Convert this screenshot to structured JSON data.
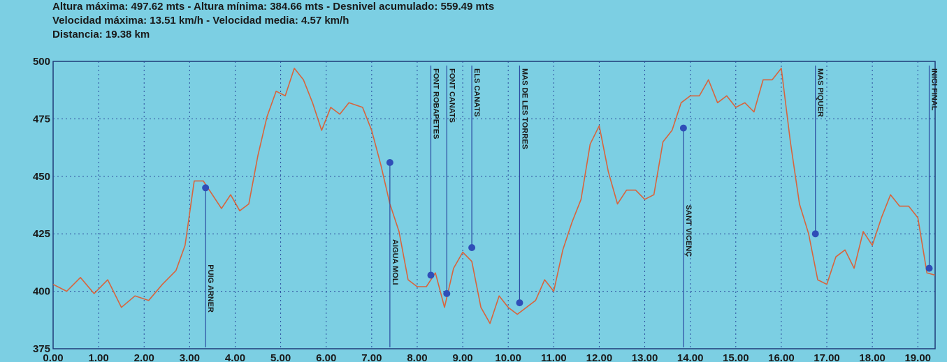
{
  "header": {
    "line1": "Altura máxima: 497.62 mts - Altura mínima: 384.66 mts - Desnivel acumulado: 559.49 mts",
    "line2": "Velocidad máxima: 13.51 km/h - Velocidad media: 4.57 km/h",
    "line3": "Distancia: 19.38 km"
  },
  "colors": {
    "background": "#7ccfe3",
    "profile_line": "#d8643c",
    "marker": "#2f4eb8",
    "marker_line": "#2a4aa0",
    "grid": "#2a4a9c"
  },
  "chart_data": {
    "type": "line",
    "title": "",
    "xlabel": "",
    "ylabel": "",
    "xlim": [
      0,
      19.38
    ],
    "ylim": [
      375,
      500
    ],
    "grid": true,
    "x_ticks": [
      "0.00",
      "1.00",
      "2.00",
      "3.00",
      "4.00",
      "5.00",
      "6.00",
      "7.00",
      "8.00",
      "9.00",
      "10.00",
      "11.00",
      "12.00",
      "13.00",
      "14.00",
      "15.00",
      "16.00",
      "17.00",
      "18.00",
      "19.00"
    ],
    "y_ticks": [
      "375",
      "400",
      "425",
      "450",
      "475",
      "500"
    ],
    "series": [
      {
        "x": [
          0.0,
          0.3,
          0.6,
          0.9,
          1.2,
          1.5,
          1.8,
          2.1,
          2.4,
          2.7,
          2.9,
          3.1,
          3.3,
          3.5,
          3.7,
          3.9,
          4.1,
          4.3,
          4.5,
          4.7,
          4.9,
          5.1,
          5.3,
          5.5,
          5.7,
          5.9,
          6.1,
          6.3,
          6.5,
          6.8,
          7.0,
          7.2,
          7.4,
          7.6,
          7.8,
          8.0,
          8.2,
          8.4,
          8.6,
          8.8,
          9.0,
          9.2,
          9.4,
          9.6,
          9.8,
          10.0,
          10.2,
          10.4,
          10.6,
          10.8,
          11.0,
          11.2,
          11.4,
          11.6,
          11.8,
          12.0,
          12.2,
          12.4,
          12.6,
          12.8,
          13.0,
          13.2,
          13.4,
          13.6,
          13.8,
          14.0,
          14.2,
          14.4,
          14.6,
          14.8,
          15.0,
          15.2,
          15.4,
          15.6,
          15.8,
          16.0,
          16.2,
          16.4,
          16.6,
          16.8,
          17.0,
          17.2,
          17.4,
          17.6,
          17.8,
          18.0,
          18.2,
          18.4,
          18.6,
          18.8,
          19.0,
          19.2,
          19.38
        ],
        "values": [
          403,
          400,
          406,
          399,
          405,
          393,
          398,
          396,
          403,
          409,
          420,
          448,
          448,
          442,
          436,
          442,
          435,
          438,
          459,
          476,
          487,
          485,
          497,
          492,
          482,
          470,
          480,
          477,
          482,
          480,
          470,
          455,
          438,
          426,
          405,
          402,
          402,
          408,
          393,
          410,
          417,
          413,
          393,
          386,
          398,
          393,
          390,
          393,
          396,
          405,
          400,
          418,
          430,
          440,
          464,
          472,
          452,
          438,
          444,
          444,
          440,
          442,
          465,
          470,
          482,
          485,
          485,
          492,
          482,
          485,
          480,
          482,
          478,
          492,
          492,
          497,
          465,
          438,
          425,
          405,
          403,
          415,
          418,
          410,
          426,
          420,
          432,
          442,
          437,
          437,
          432,
          408,
          407
        ]
      }
    ],
    "waypoints": [
      {
        "label": "PUIG ARNER",
        "x": 3.35,
        "y": 445
      },
      {
        "label": "AIGUA MOLI",
        "x": 7.4,
        "y": 456
      },
      {
        "label": "FONT ROBAPETES",
        "x": 8.3,
        "y": 407
      },
      {
        "label": "FONT CANATS",
        "x": 8.65,
        "y": 399
      },
      {
        "label": "ELS CANATS",
        "x": 9.2,
        "y": 419
      },
      {
        "label": "MAS DE LES TORRES",
        "x": 10.25,
        "y": 395
      },
      {
        "label": "SANT VICENÇ",
        "x": 13.85,
        "y": 471
      },
      {
        "label": "MAS PIQUER",
        "x": 16.75,
        "y": 425
      },
      {
        "label": "INICI FINAL",
        "x": 19.25,
        "y": 410
      }
    ]
  }
}
